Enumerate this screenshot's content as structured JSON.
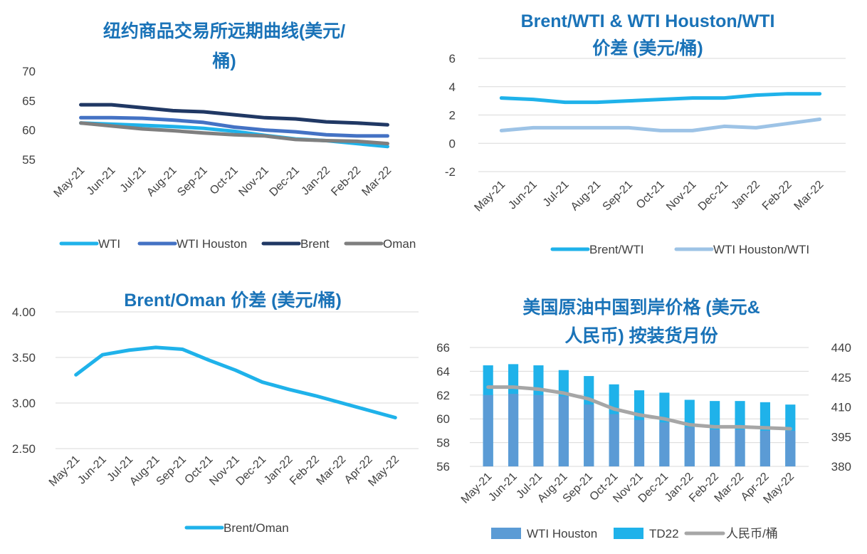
{
  "colors": {
    "title": "#1a73b8",
    "axis_text": "#404040",
    "grid": "#d9d9d9",
    "wti": "#1fb2ea",
    "wti_houston": "#4472c4",
    "brent": "#203864",
    "oman": "#7f7f7f",
    "brent_wti": "#1fb2ea",
    "houston_wti": "#9dc3e6",
    "brent_oman": "#1fb2ea",
    "bar_houston": "#5b9bd5",
    "bar_td22": "#1fb2ea",
    "rmb": "#a6a6a6"
  },
  "chart_data": [
    {
      "type": "line",
      "title": "纽约商品交易所远期曲线(美元/桶)",
      "title_lines": [
        "纽约商品交易所远期曲线(美元/",
        "桶)"
      ],
      "categories": [
        "May-21",
        "Jun-21",
        "Jul-21",
        "Aug-21",
        "Sep-21",
        "Oct-21",
        "Nov-21",
        "Dec-21",
        "Jan-22",
        "Feb-22",
        "Mar-22"
      ],
      "ylim": [
        55,
        70
      ],
      "yticks": [
        "55",
        "60",
        "65",
        "70"
      ],
      "grid": false,
      "legend": "bottom",
      "series": [
        {
          "name": "WTI",
          "color_key": "wti",
          "values": [
            61.2,
            61.0,
            60.8,
            60.6,
            60.3,
            59.8,
            59.1,
            58.5,
            58.2,
            57.7,
            57.2
          ]
        },
        {
          "name": "WTI Houston",
          "color_key": "wti_houston",
          "values": [
            62.1,
            62.1,
            62.0,
            61.7,
            61.3,
            60.5,
            60.0,
            59.7,
            59.2,
            59.0,
            59.0
          ]
        },
        {
          "name": "Brent",
          "color_key": "brent",
          "values": [
            64.3,
            64.3,
            63.8,
            63.3,
            63.1,
            62.6,
            62.1,
            61.9,
            61.4,
            61.2,
            60.9
          ]
        },
        {
          "name": "Oman",
          "color_key": "oman",
          "values": [
            61.2,
            60.7,
            60.2,
            59.9,
            59.5,
            59.2,
            59.0,
            58.4,
            58.2,
            58.1,
            57.7
          ]
        }
      ]
    },
    {
      "type": "line",
      "title": "Brent/WTI & WTI Houston/WTI 价差 (美元/桶)",
      "title_lines": [
        "Brent/WTI & WTI Houston/WTI",
        "价差 (美元/桶)"
      ],
      "categories": [
        "May-21",
        "Jun-21",
        "Jul-21",
        "Aug-21",
        "Sep-21",
        "Oct-21",
        "Nov-21",
        "Dec-21",
        "Jan-22",
        "Feb-22",
        "Mar-22"
      ],
      "ylim": [
        -2,
        6
      ],
      "yticks": [
        "-2",
        "0",
        "2",
        "4",
        "6"
      ],
      "grid": true,
      "legend": "bottom",
      "series": [
        {
          "name": "Brent/WTI",
          "color_key": "brent_wti",
          "values": [
            3.2,
            3.1,
            2.9,
            2.9,
            3.0,
            3.1,
            3.2,
            3.2,
            3.4,
            3.5,
            3.5
          ]
        },
        {
          "name": "WTI Houston/WTI",
          "color_key": "houston_wti",
          "values": [
            0.9,
            1.1,
            1.1,
            1.1,
            1.1,
            0.9,
            0.9,
            1.2,
            1.1,
            1.4,
            1.7
          ]
        }
      ]
    },
    {
      "type": "line",
      "title": "Brent/Oman 价差 (美元/桶)",
      "title_lines": [
        "Brent/Oman 价差 (美元/桶)"
      ],
      "categories": [
        "May-21",
        "Jun-21",
        "Jul-21",
        "Aug-21",
        "Sep-21",
        "Oct-21",
        "Nov-21",
        "Dec-21",
        "Jan-22",
        "Feb-22",
        "Mar-22",
        "Apr-22",
        "May-22"
      ],
      "ylim": [
        2.5,
        4.0
      ],
      "yticks": [
        "2.50",
        "3.00",
        "3.50",
        "4.00"
      ],
      "grid": true,
      "legend": "bottom",
      "series": [
        {
          "name": "Brent/Oman",
          "color_key": "brent_oman",
          "values": [
            3.31,
            3.53,
            3.58,
            3.61,
            3.59,
            3.47,
            3.36,
            3.23,
            3.15,
            3.08,
            3.0,
            2.92,
            2.84
          ]
        }
      ]
    },
    {
      "type": "bar",
      "title": "美国原油中国到岸价格 (美元&人民币) 按装货月份",
      "title_lines": [
        "美国原油中国到岸价格 (美元&",
        "人民币) 按装货月份"
      ],
      "categories": [
        "May-21",
        "Jun-21",
        "Jul-21",
        "Aug-21",
        "Sep-21",
        "Oct-21",
        "Nov-21",
        "Dec-21",
        "Jan-22",
        "Feb-22",
        "Mar-22",
        "Apr-22",
        "May-22"
      ],
      "ylim": [
        56,
        66
      ],
      "yticks": [
        "56",
        "58",
        "60",
        "62",
        "64",
        "66"
      ],
      "y2lim": [
        380,
        440
      ],
      "y2ticks": [
        "380",
        "395",
        "410",
        "425",
        "440"
      ],
      "grid": true,
      "legend": "bottom",
      "series": [
        {
          "name": "WTI Houston",
          "type": "bar",
          "axis": "left",
          "color_key": "bar_houston",
          "values": [
            62.0,
            62.1,
            62.0,
            61.9,
            61.2,
            60.4,
            59.9,
            59.7,
            59.3,
            59.1,
            59.1,
            59.0,
            59.0
          ]
        },
        {
          "name": "TD22",
          "type": "bar",
          "axis": "left",
          "color_key": "bar_td22",
          "values": [
            64.5,
            64.6,
            64.5,
            64.1,
            63.6,
            62.9,
            62.4,
            62.2,
            61.6,
            61.5,
            61.5,
            61.4,
            61.2
          ]
        },
        {
          "name": "人民币/桶",
          "type": "line",
          "axis": "right",
          "color_key": "rmb",
          "values": [
            420,
            420,
            419,
            417,
            414,
            409,
            406,
            404,
            401,
            400,
            400,
            399.5,
            399
          ]
        }
      ]
    }
  ]
}
